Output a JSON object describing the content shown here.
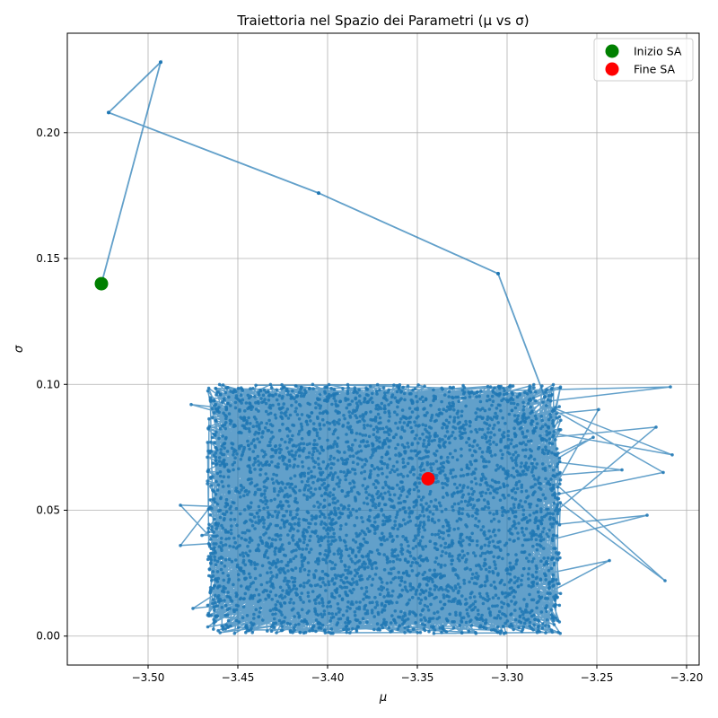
{
  "chart_data": {
    "type": "line",
    "title": "Traiettoria nel Spazio dei Parametri (μ vs σ)",
    "xlabel": "μ",
    "ylabel": "σ",
    "xlim": [
      -3.545,
      -3.193
    ],
    "ylim": [
      -0.0115,
      0.2395
    ],
    "xticks": [
      -3.5,
      -3.45,
      -3.4,
      -3.35,
      -3.3,
      -3.25,
      -3.2
    ],
    "xtick_labels": [
      "−3.50",
      "−3.45",
      "−3.40",
      "−3.35",
      "−3.30",
      "−3.25",
      "−3.20"
    ],
    "yticks": [
      0.0,
      0.05,
      0.1,
      0.15,
      0.2
    ],
    "ytick_labels": [
      "0.00",
      "0.05",
      "0.10",
      "0.15",
      "0.20"
    ],
    "grid": true,
    "legend_position": "top-right",
    "trajectory_color": "#1f77b4",
    "trajectory_path": {
      "x": [
        -3.526,
        -3.493,
        -3.522,
        -3.405,
        -3.305,
        -3.279
      ],
      "y": [
        0.14,
        0.228,
        0.208,
        0.176,
        0.144,
        0.095
      ]
    },
    "cluster_region": {
      "x_range": [
        -3.467,
        -3.27
      ],
      "y_range": [
        0.001,
        0.1
      ]
    },
    "outlier_points": {
      "x": [
        -3.209,
        -3.208,
        -3.217,
        -3.213,
        -3.212,
        -3.222,
        -3.236,
        -3.243,
        -3.249,
        -3.252,
        -3.482,
        -3.482,
        -3.475,
        -3.476,
        -3.47
      ],
      "y": [
        0.099,
        0.072,
        0.083,
        0.065,
        0.022,
        0.048,
        0.066,
        0.03,
        0.09,
        0.079,
        0.052,
        0.036,
        0.011,
        0.092,
        0.04
      ]
    },
    "markers": [
      {
        "label": "Inizio SA",
        "x": -3.526,
        "y": 0.14,
        "color": "#008000"
      },
      {
        "label": "Fine SA",
        "x": -3.344,
        "y": 0.0625,
        "color": "#ff0000"
      }
    ]
  }
}
